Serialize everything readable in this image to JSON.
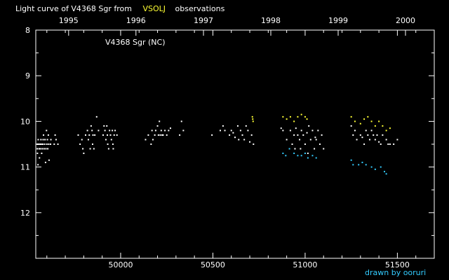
{
  "title_prefix": "Light curve of V4368 Sgr from",
  "title_source": "VSOLJ",
  "title_suffix": "observations",
  "credit": "drawn by ooruri",
  "colors": {
    "background": "#000000",
    "axes": "#ffffff",
    "text": "#ffffff",
    "highlight": "#ffff33",
    "cyan": "#33ccff",
    "white_points": "#ffffff"
  },
  "chart_data": {
    "type": "scatter",
    "annotation": "V4368 Sgr (NC)",
    "xlabel": "",
    "ylabel": "",
    "xlim": [
      49540,
      51700
    ],
    "ylim": [
      13,
      8
    ],
    "y_inverted": true,
    "x_ticks": [
      "50000",
      "50500",
      "51000",
      "51500"
    ],
    "x_tick_values": [
      50000,
      50500,
      51000,
      51500
    ],
    "top_ticks": [
      "1995",
      "1996",
      "1997",
      "1998",
      "1999",
      "2000"
    ],
    "top_tick_values": [
      49718,
      50083,
      50449,
      50814,
      51179,
      51544
    ],
    "y_ticks": [
      "8",
      "9",
      "10",
      "11",
      "12"
    ],
    "y_tick_values": [
      8,
      9,
      10,
      11,
      12
    ],
    "grid": false,
    "series": [
      {
        "color": "#ffffff",
        "points": [
          [
            49548,
            10.5
          ],
          [
            49548,
            10.6
          ],
          [
            49549,
            10.7
          ],
          [
            49552,
            10.95
          ],
          [
            49553,
            10.4
          ],
          [
            49555,
            10.5
          ],
          [
            49558,
            10.6
          ],
          [
            49560,
            10.8
          ],
          [
            49563,
            10.5
          ],
          [
            49565,
            10.6
          ],
          [
            49568,
            10.4
          ],
          [
            49570,
            10.5
          ],
          [
            49572,
            10.7
          ],
          [
            49575,
            10.6
          ],
          [
            49578,
            10.5
          ],
          [
            49580,
            10.4
          ],
          [
            49582,
            10.3
          ],
          [
            49585,
            10.6
          ],
          [
            49588,
            10.5
          ],
          [
            49590,
            10.4
          ],
          [
            49593,
            10.9
          ],
          [
            49595,
            10.6
          ],
          [
            49598,
            10.2
          ],
          [
            49600,
            10.5
          ],
          [
            49603,
            10.4
          ],
          [
            49605,
            10.6
          ],
          [
            49608,
            10.3
          ],
          [
            49610,
            10.5
          ],
          [
            49612,
            10.85
          ],
          [
            49620,
            10.5
          ],
          [
            49622,
            10.4
          ],
          [
            49640,
            10.5
          ],
          [
            49645,
            10.3
          ],
          [
            49650,
            10.4
          ],
          [
            49660,
            10.5
          ],
          [
            49770,
            10.3
          ],
          [
            49780,
            10.5
          ],
          [
            49790,
            10.4
          ],
          [
            49795,
            10.6
          ],
          [
            49800,
            10.7
          ],
          [
            49810,
            10.3
          ],
          [
            49820,
            10.2
          ],
          [
            49825,
            10.4
          ],
          [
            49830,
            10.3
          ],
          [
            49835,
            10.6
          ],
          [
            49840,
            10.1
          ],
          [
            49845,
            10.2
          ],
          [
            49848,
            10.5
          ],
          [
            49850,
            10.3
          ],
          [
            49855,
            10.6
          ],
          [
            49860,
            10.3
          ],
          [
            49870,
            9.9
          ],
          [
            49880,
            10.2
          ],
          [
            49905,
            10.3
          ],
          [
            49910,
            10.1
          ],
          [
            49915,
            10.2
          ],
          [
            49920,
            10.4
          ],
          [
            49925,
            10.1
          ],
          [
            49928,
            10.3
          ],
          [
            49930,
            10.5
          ],
          [
            49935,
            10.6
          ],
          [
            49940,
            10.2
          ],
          [
            49945,
            10.3
          ],
          [
            49950,
            10.4
          ],
          [
            49955,
            10.2
          ],
          [
            49958,
            10.5
          ],
          [
            49960,
            10.6
          ],
          [
            49965,
            10.3
          ],
          [
            49970,
            10.2
          ],
          [
            49980,
            10.3
          ],
          [
            50135,
            10.4
          ],
          [
            50150,
            10.3
          ],
          [
            50165,
            10.5
          ],
          [
            50170,
            10.2
          ],
          [
            50175,
            10.4
          ],
          [
            50185,
            10.3
          ],
          [
            50190,
            10.2
          ],
          [
            50200,
            10.1
          ],
          [
            50205,
            10.3
          ],
          [
            50210,
            10.0
          ],
          [
            50215,
            10.3
          ],
          [
            50220,
            10.2
          ],
          [
            50225,
            10.3
          ],
          [
            50230,
            10.3
          ],
          [
            50240,
            10.2
          ],
          [
            50250,
            10.3
          ],
          [
            50260,
            10.2
          ],
          [
            50270,
            10.15
          ],
          [
            50320,
            10.3
          ],
          [
            50330,
            10.0
          ],
          [
            50340,
            10.2
          ],
          [
            50495,
            10.3
          ],
          [
            50540,
            10.2
          ],
          [
            50555,
            10.1
          ],
          [
            50565,
            10.2
          ],
          [
            50590,
            10.3
          ],
          [
            50600,
            10.2
          ],
          [
            50610,
            10.25
          ],
          [
            50620,
            10.35
          ],
          [
            50635,
            10.1
          ],
          [
            50640,
            10.4
          ],
          [
            50650,
            10.2
          ],
          [
            50660,
            10.3
          ],
          [
            50670,
            10.4
          ],
          [
            50680,
            10.1
          ],
          [
            50690,
            10.2
          ],
          [
            50700,
            10.45
          ],
          [
            50710,
            10.3
          ],
          [
            50720,
            10.5
          ],
          [
            50870,
            10.15
          ],
          [
            50880,
            10.2
          ],
          [
            50900,
            10.4
          ],
          [
            50920,
            10.2
          ],
          [
            50930,
            10.5
          ],
          [
            50940,
            10.3
          ],
          [
            50945,
            10.6
          ],
          [
            50950,
            10.15
          ],
          [
            50960,
            10.3
          ],
          [
            50970,
            10.4
          ],
          [
            50975,
            10.6
          ],
          [
            50980,
            10.2
          ],
          [
            50990,
            10.3
          ],
          [
            51000,
            10.5
          ],
          [
            51010,
            10.25
          ],
          [
            51015,
            10.7
          ],
          [
            51020,
            10.1
          ],
          [
            51030,
            10.4
          ],
          [
            51040,
            10.2
          ],
          [
            51050,
            10.6
          ],
          [
            51055,
            10.35
          ],
          [
            51060,
            10.4
          ],
          [
            51070,
            10.2
          ],
          [
            51080,
            10.5
          ],
          [
            51090,
            10.3
          ],
          [
            51100,
            10.6
          ],
          [
            51250,
            10.1
          ],
          [
            51260,
            10.3
          ],
          [
            51270,
            10.2
          ],
          [
            51280,
            10.4
          ],
          [
            51300,
            10.3
          ],
          [
            51310,
            10.35
          ],
          [
            51320,
            10.5
          ],
          [
            51330,
            10.2
          ],
          [
            51340,
            10.3
          ],
          [
            51350,
            10.4
          ],
          [
            51360,
            10.2
          ],
          [
            51370,
            10.3
          ],
          [
            51380,
            10.4
          ],
          [
            51390,
            10.3
          ],
          [
            51400,
            10.45
          ],
          [
            51410,
            10.5
          ],
          [
            51420,
            10.3
          ],
          [
            51440,
            10.4
          ],
          [
            51450,
            10.5
          ],
          [
            51460,
            10.5
          ],
          [
            51480,
            10.5
          ],
          [
            51500,
            10.4
          ]
        ]
      },
      {
        "color": "#ffff33",
        "points": [
          [
            50714,
            9.9
          ],
          [
            50716,
            9.95
          ],
          [
            50718,
            10.0
          ],
          [
            50880,
            9.9
          ],
          [
            50900,
            9.95
          ],
          [
            50920,
            9.9
          ],
          [
            50940,
            10.0
          ],
          [
            50960,
            9.9
          ],
          [
            50980,
            9.85
          ],
          [
            51000,
            9.9
          ],
          [
            51010,
            9.95
          ],
          [
            51250,
            9.9
          ],
          [
            51270,
            10.0
          ],
          [
            51300,
            10.05
          ],
          [
            51320,
            9.95
          ],
          [
            51340,
            9.9
          ],
          [
            51360,
            10.0
          ],
          [
            51380,
            10.1
          ],
          [
            51400,
            10.0
          ],
          [
            51420,
            10.1
          ],
          [
            51440,
            10.2
          ],
          [
            51460,
            10.15
          ]
        ]
      },
      {
        "color": "#33ccff",
        "points": [
          [
            50880,
            10.7
          ],
          [
            50895,
            10.75
          ],
          [
            50915,
            10.6
          ],
          [
            50940,
            10.7
          ],
          [
            50960,
            10.75
          ],
          [
            50980,
            10.75
          ],
          [
            51000,
            10.7
          ],
          [
            51015,
            10.8
          ],
          [
            51040,
            10.75
          ],
          [
            51060,
            10.8
          ],
          [
            51250,
            10.85
          ],
          [
            51260,
            10.95
          ],
          [
            51290,
            10.95
          ],
          [
            51310,
            10.9
          ],
          [
            51330,
            10.95
          ],
          [
            51360,
            11.0
          ],
          [
            51380,
            11.05
          ],
          [
            51410,
            11.0
          ],
          [
            51430,
            11.1
          ],
          [
            51440,
            11.15
          ]
        ]
      }
    ]
  }
}
